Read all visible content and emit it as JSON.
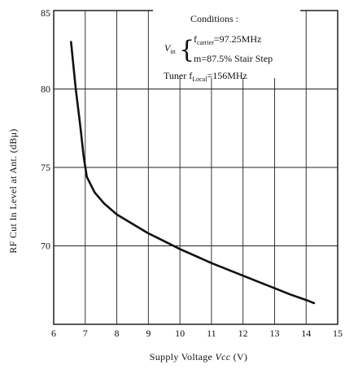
{
  "chart_data": {
    "type": "line",
    "xlabel_text": "Supply Voltage ",
    "xlabel_symbol": "Vcc",
    "xlabel_unit": " (V)",
    "ylabel": "RF Cut In Level at Ant. (dBμ)",
    "xlim": [
      6,
      15
    ],
    "ylim": [
      65,
      85
    ],
    "x_ticks": [
      "6",
      "7",
      "8",
      "9",
      "10",
      "11",
      "12",
      "13",
      "14",
      "15"
    ],
    "y_ticks": [
      "70",
      "75",
      "80",
      "85"
    ],
    "grid": true,
    "conditions": {
      "title": "Conditions :",
      "vin_label": "V",
      "vin_sub": "in",
      "f_label": "f",
      "f_sub": "carrier",
      "f_value": "=97.25MHz",
      "m_value": "m=87.5% Stair Step",
      "tuner_label": "Tuner f",
      "tuner_sub": "Local",
      "tuner_value": "=156MHz"
    },
    "series": [
      {
        "x": [
          6.55,
          6.7,
          6.85,
          6.95,
          7.05,
          7.3,
          7.6,
          8.0,
          8.5,
          9.0,
          9.5,
          10.0,
          10.5,
          11.0,
          11.5,
          12.0,
          12.5,
          13.0,
          13.5,
          14.0,
          14.25
        ],
        "y": [
          83.0,
          80.0,
          77.5,
          75.7,
          74.4,
          73.4,
          72.7,
          72.0,
          71.4,
          70.8,
          70.3,
          69.8,
          69.35,
          68.9,
          68.5,
          68.1,
          67.7,
          67.3,
          66.9,
          66.55,
          66.35
        ]
      }
    ]
  }
}
